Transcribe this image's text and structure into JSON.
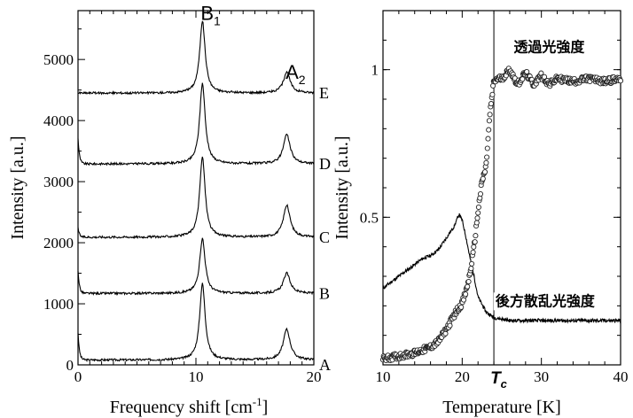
{
  "chart_data": [
    {
      "type": "line",
      "title": "",
      "xlabel": "Frequency shift [cm",
      "xlabel_sup": "-1",
      "xlabel_suffix": "]",
      "ylabel": "Intensity [a.u.]",
      "xlim": [
        0,
        20
      ],
      "ylim": [
        0,
        5800
      ],
      "xticks": [
        0,
        10,
        20
      ],
      "yticks": [
        0,
        1000,
        2000,
        3000,
        4000,
        5000
      ],
      "peak_labels": [
        {
          "main": "B",
          "sub": "1",
          "x": 10.4,
          "y": 5650
        },
        {
          "main": "A",
          "sub": "2",
          "x": 17.6,
          "y": 4680
        }
      ],
      "series": [
        {
          "name": "A",
          "label_y": 0,
          "baseline": 80,
          "peak_b1": 1250,
          "peak_a2": 500,
          "spike": 450
        },
        {
          "name": "B",
          "label_y": 1170,
          "baseline": 1170,
          "peak_b1": 900,
          "peak_a2": 330,
          "spike": 380
        },
        {
          "name": "C",
          "label_y": 2090,
          "baseline": 2090,
          "peak_b1": 1310,
          "peak_a2": 520,
          "spike": 150
        },
        {
          "name": "D",
          "label_y": 3290,
          "baseline": 3290,
          "peak_b1": 1320,
          "peak_a2": 480,
          "spike": 420
        },
        {
          "name": "E",
          "label_y": 4450,
          "baseline": 4450,
          "peak_b1": 1180,
          "peak_a2": 340,
          "spike": 0
        }
      ]
    },
    {
      "type": "scatter",
      "title": "",
      "xlabel": "Temperature [K]",
      "ylabel": "Intensity [a.u.]",
      "xlim": [
        10,
        40
      ],
      "ylim": [
        0,
        1.2
      ],
      "xticks": [
        10,
        20,
        30,
        40
      ],
      "yticks": [
        0.5,
        1
      ],
      "ytick_labels": [
        "0.5",
        "1"
      ],
      "tc_marker": {
        "x": 24,
        "label": "T",
        "sub": "c"
      },
      "annotations": [
        {
          "text": "透過光強度",
          "x": 26.5,
          "y": 1.06
        },
        {
          "text": "後方散乱光強度",
          "x": 24.2,
          "y": 0.2
        }
      ],
      "series": [
        {
          "name": "透過光強度",
          "points": [
            [
              10,
              0.02
            ],
            [
              12,
              0.03
            ],
            [
              14,
              0.04
            ],
            [
              15,
              0.05
            ],
            [
              16,
              0.06
            ],
            [
              17,
              0.08
            ],
            [
              18,
              0.12
            ],
            [
              19,
              0.17
            ],
            [
              20,
              0.21
            ],
            [
              20.5,
              0.25
            ],
            [
              21,
              0.31
            ],
            [
              21.5,
              0.4
            ],
            [
              22,
              0.52
            ],
            [
              22.5,
              0.62
            ],
            [
              23,
              0.67
            ],
            [
              23.5,
              0.85
            ],
            [
              24,
              0.96
            ],
            [
              24.5,
              0.97
            ],
            [
              25,
              0.97
            ],
            [
              26,
              1.0
            ],
            [
              27,
              0.95
            ],
            [
              28,
              0.99
            ],
            [
              29,
              0.95
            ],
            [
              30,
              0.98
            ],
            [
              31,
              0.95
            ],
            [
              32,
              0.97
            ],
            [
              34,
              0.96
            ],
            [
              36,
              0.97
            ],
            [
              38,
              0.96
            ],
            [
              40,
              0.97
            ]
          ]
        },
        {
          "name": "後方散乱光強度",
          "points": [
            [
              10,
              0.26
            ],
            [
              11,
              0.28
            ],
            [
              12,
              0.3
            ],
            [
              13,
              0.32
            ],
            [
              14,
              0.34
            ],
            [
              15,
              0.36
            ],
            [
              16,
              0.37
            ],
            [
              17,
              0.39
            ],
            [
              18,
              0.43
            ],
            [
              19,
              0.47
            ],
            [
              19.6,
              0.51
            ],
            [
              20,
              0.49
            ],
            [
              20.5,
              0.43
            ],
            [
              21,
              0.36
            ],
            [
              21.5,
              0.3
            ],
            [
              22,
              0.23
            ],
            [
              23,
              0.18
            ],
            [
              24,
              0.16
            ],
            [
              26,
              0.15
            ],
            [
              28,
              0.15
            ],
            [
              30,
              0.15
            ],
            [
              35,
              0.15
            ],
            [
              40,
              0.15
            ]
          ]
        }
      ]
    }
  ]
}
